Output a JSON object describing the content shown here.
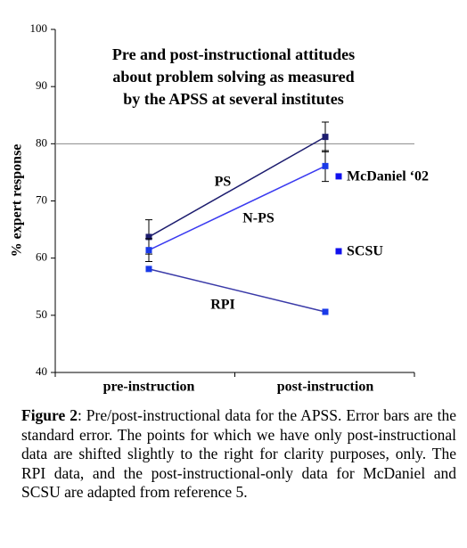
{
  "chart_data": {
    "type": "line",
    "title": [
      "Pre and post-instructional attitudes",
      "about problem solving as measured",
      "by the APSS at several institutes"
    ],
    "y_label": "% expert response",
    "categories": [
      "pre-instruction",
      "post-instruction"
    ],
    "ylim": [
      40,
      100
    ],
    "yticks": [
      40,
      50,
      60,
      70,
      80,
      90,
      100
    ],
    "reference_line": 80,
    "series": [
      {
        "name": "PS",
        "color": "#1c1c6e",
        "values": [
          63.7,
          81.2
        ],
        "errors": [
          3.0,
          2.6
        ]
      },
      {
        "name": "N-PS",
        "color": "#3a3af0",
        "values": [
          61.4,
          76.1
        ],
        "errors": [
          2.0,
          2.7
        ]
      },
      {
        "name": "RPI",
        "color": "#3a3aa8",
        "values": [
          58.1,
          50.6
        ]
      },
      {
        "name": "McDaniel ‘02",
        "color": "#1010ee",
        "values": [
          null,
          74.3
        ]
      },
      {
        "name": "SCSU",
        "color": "#1010ee",
        "values": [
          null,
          61.2
        ]
      }
    ]
  },
  "caption": {
    "label": "Figure 2",
    "text": ": Pre/post-instructional data for the APSS. Error bars are the standard error. The points for which we have only post-instructional data are shifted slightly to the right for clarity purposes, only. The RPI data, and the post-instructional-only data for McDaniel and SCSU are adapted from reference 5."
  }
}
